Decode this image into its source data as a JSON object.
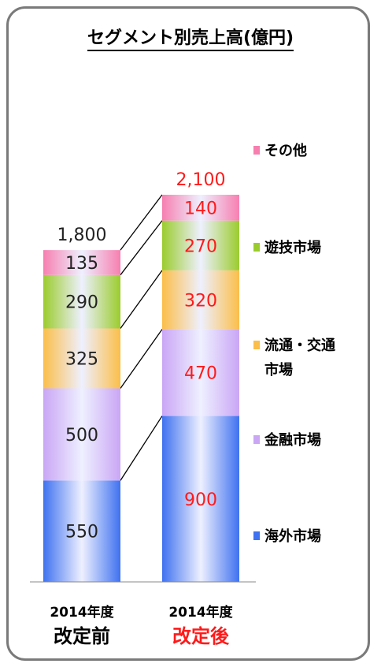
{
  "chart_data": {
    "type": "bar",
    "stacked": true,
    "title": "セグメント別売上高(億円)",
    "categories": [
      {
        "year": "2014年度",
        "label": "改定前"
      },
      {
        "year": "2014年度",
        "label": "改定後"
      }
    ],
    "totals": [
      "1,800",
      "2,100"
    ],
    "series": [
      {
        "name": "海外市場",
        "values": [
          550,
          900
        ],
        "color": "#3f72f0"
      },
      {
        "name": "金融市場",
        "values": [
          500,
          470
        ],
        "color": "#caa6f5"
      },
      {
        "name": "流通・交通市場",
        "values": [
          325,
          320
        ],
        "color": "#fbbe4a"
      },
      {
        "name": "遊技市場",
        "values": [
          290,
          270
        ],
        "color": "#9bcc2e"
      },
      {
        "name": "その他",
        "values": [
          135,
          140
        ],
        "color": "#f77fb0"
      }
    ],
    "legend_order": [
      "その他",
      "遊技市場",
      "流通・交通市場",
      "金融市場",
      "海外市場"
    ],
    "legend_placement": "right",
    "highlight_color": "#ff1a1a",
    "grid": false
  }
}
